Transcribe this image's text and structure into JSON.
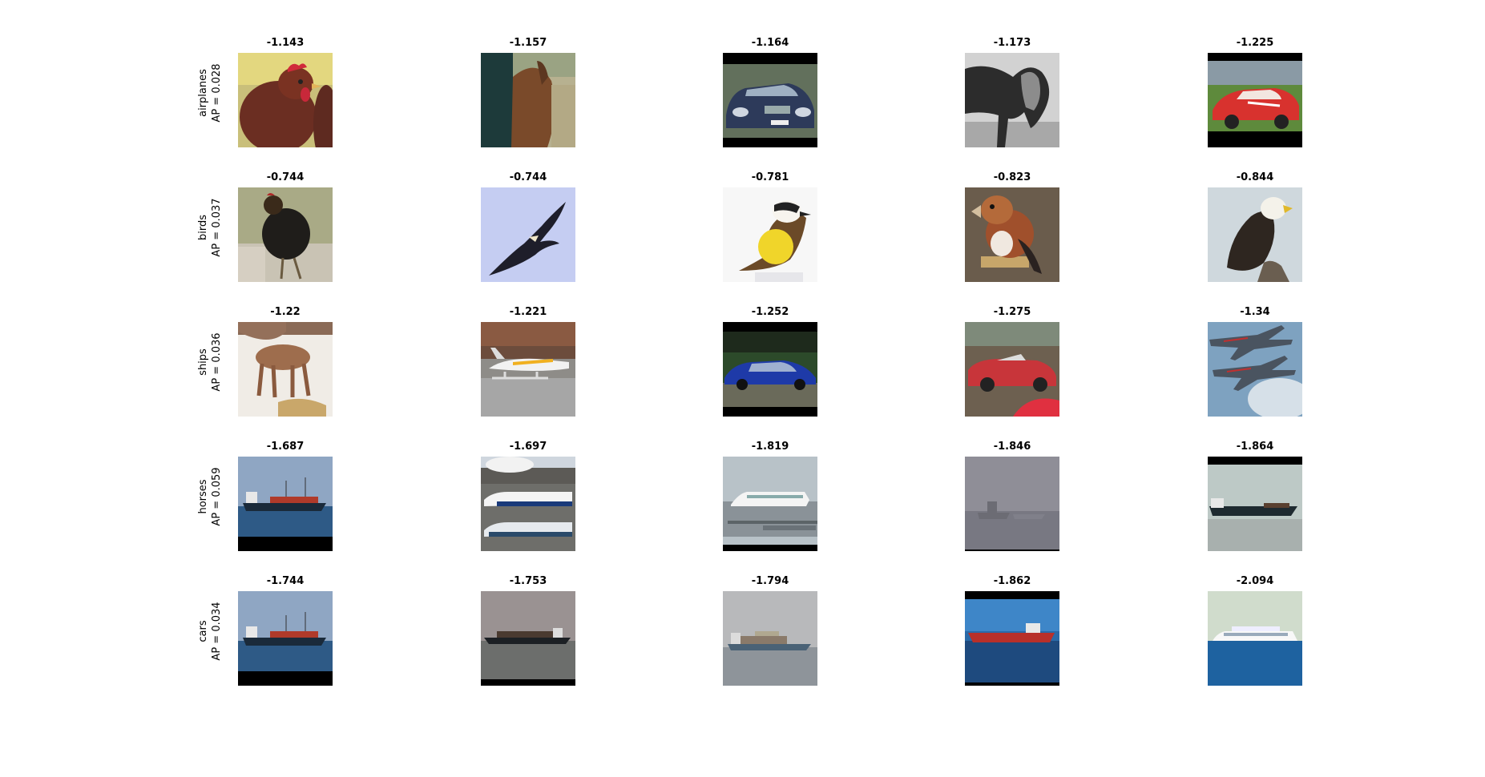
{
  "rows": [
    {
      "name": "airplanes",
      "ap": "AP = 0.028",
      "scores": [
        "-1.143",
        "-1.157",
        "-1.164",
        "-1.173",
        "-1.225"
      ],
      "images": [
        "hen-photo",
        "horse-rider-photo",
        "blue-sedan-photo",
        "gray-horse-photo",
        "red-sports-car-photo"
      ]
    },
    {
      "name": "birds",
      "ap": "AP = 0.037",
      "scores": [
        "-0.744",
        "-0.744",
        "-0.781",
        "-0.823",
        "-0.844"
      ],
      "images": [
        "black-hen-photo",
        "soaring-eagle-photo",
        "yellow-bird-photo",
        "finch-photo",
        "bald-eagle-photo"
      ]
    },
    {
      "name": "ships",
      "ap": "AP = 0.036",
      "scores": [
        "-1.22",
        "-1.221",
        "-1.252",
        "-1.275",
        "-1.34"
      ],
      "images": [
        "deer-fawn-photo",
        "seaplane-photo",
        "blue-car-photo",
        "red-convertible-photo",
        "fighter-jets-photo"
      ]
    },
    {
      "name": "horses",
      "ap": "AP = 0.059",
      "scores": [
        "-1.687",
        "-1.697",
        "-1.819",
        "-1.846",
        "-1.864"
      ],
      "images": [
        "cargo-ship-photo",
        "airliners-photo",
        "cruise-ship-photo",
        "foggy-ship-photo",
        "tanker-ship-photo"
      ]
    },
    {
      "name": "cars",
      "ap": "AP = 0.034",
      "scores": [
        "-1.744",
        "-1.753",
        "-1.794",
        "-1.862",
        "-2.094"
      ],
      "images": [
        "cargo-ship-photo",
        "container-ship-photo",
        "container-ship-haze-photo",
        "red-tanker-photo",
        "white-cruise-ship-photo"
      ]
    }
  ]
}
